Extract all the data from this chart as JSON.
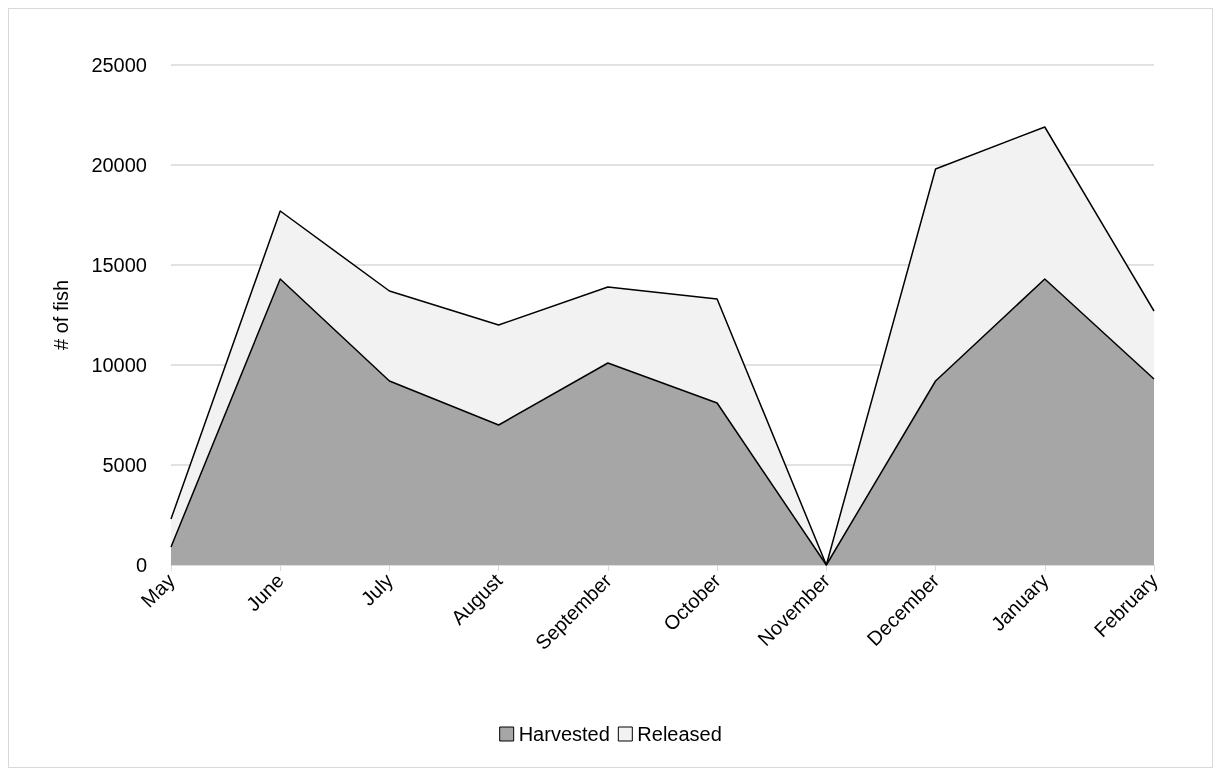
{
  "chart_data": {
    "type": "area",
    "stacked": true,
    "ylabel": "# of fish",
    "categories": [
      "May",
      "June",
      "July",
      "August",
      "September",
      "October",
      "November",
      "December",
      "January",
      "February"
    ],
    "series": [
      {
        "name": "Harvested",
        "color": "#a6a6a6",
        "values": [
          900,
          14300,
          9200,
          7000,
          10100,
          8100,
          0,
          9200,
          14300,
          9300
        ]
      },
      {
        "name": "Released",
        "color": "#f2f2f2",
        "values": [
          1400,
          3400,
          4500,
          5000,
          3800,
          5200,
          0,
          10600,
          7600,
          3400
        ]
      }
    ],
    "ylim": [
      0,
      25000
    ],
    "yticks": [
      0,
      5000,
      10000,
      15000,
      20000,
      25000
    ],
    "grid": "y",
    "legend": "bottom"
  }
}
